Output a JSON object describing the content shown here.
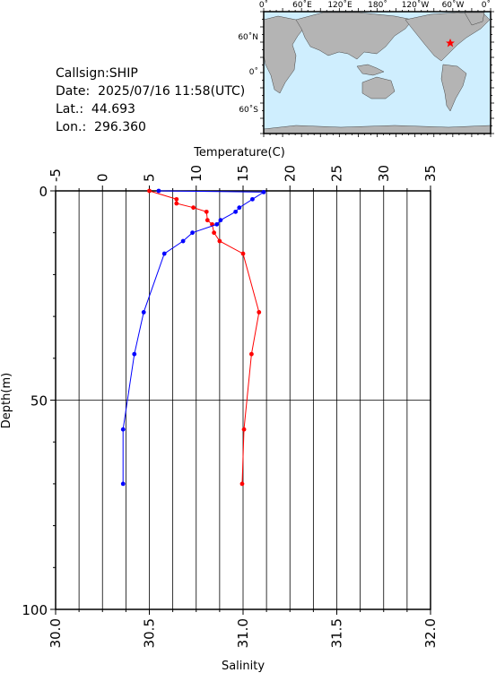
{
  "info": {
    "callsign": "Callsign:SHIP",
    "date": "Date:  2025/07/16 11:58(UTC)",
    "lat": "Lat.:  44.693",
    "lon": "Lon.:  296.360"
  },
  "map": {
    "top_labels": [
      "0˚",
      "60˚E",
      "120˚E",
      "180˚",
      "120˚W",
      "60˚W",
      "0˚"
    ],
    "left_labels": [
      "60˚N",
      "0˚",
      "60˚S"
    ],
    "station_marker": "red-star-icon",
    "ocean_color": "#cfeefe",
    "land_color": "#b4b4b4"
  },
  "chart_data": {
    "type": "line",
    "x_top_label": "Temperature(C)",
    "x_bottom_label": "Salinity",
    "ylabel": "Depth(m)",
    "temperature_ticks": [
      "-5",
      "0",
      "5",
      "10",
      "15",
      "20",
      "25",
      "30",
      "35"
    ],
    "salinity_ticks": [
      "30.0",
      "30.5",
      "31.0",
      "31.5",
      "32.0"
    ],
    "depth_ticks": [
      "0",
      "50",
      "100"
    ],
    "temperature_range": [
      -5,
      35
    ],
    "salinity_range": [
      30.0,
      32.0
    ],
    "depth_range": [
      0,
      100
    ],
    "grid": true,
    "series": [
      {
        "name": "Temperature(C)",
        "axis": "top",
        "color": "#ff0000",
        "points": [
          {
            "depth": 0,
            "value": 5.0
          },
          {
            "depth": 2,
            "value": 7.9
          },
          {
            "depth": 3,
            "value": 7.9
          },
          {
            "depth": 4,
            "value": 9.7
          },
          {
            "depth": 5,
            "value": 11.1
          },
          {
            "depth": 7,
            "value": 11.2
          },
          {
            "depth": 8,
            "value": 11.7
          },
          {
            "depth": 10,
            "value": 11.9
          },
          {
            "depth": 12,
            "value": 12.5
          },
          {
            "depth": 15,
            "value": 15.0
          },
          {
            "depth": 29,
            "value": 16.7
          },
          {
            "depth": 39,
            "value": 15.9
          },
          {
            "depth": 57,
            "value": 15.1
          },
          {
            "depth": 70,
            "value": 14.9
          }
        ]
      },
      {
        "name": "Salinity",
        "axis": "bottom",
        "color": "#0000ff",
        "points": [
          {
            "depth": 0,
            "value": 30.55
          },
          {
            "depth": 0.3,
            "value": 31.11
          },
          {
            "depth": 2,
            "value": 31.05
          },
          {
            "depth": 4,
            "value": 30.98
          },
          {
            "depth": 5,
            "value": 30.96
          },
          {
            "depth": 7,
            "value": 30.88
          },
          {
            "depth": 8,
            "value": 30.86
          },
          {
            "depth": 10,
            "value": 30.73
          },
          {
            "depth": 12,
            "value": 30.68
          },
          {
            "depth": 15,
            "value": 30.58
          },
          {
            "depth": 29,
            "value": 30.47
          },
          {
            "depth": 39,
            "value": 30.42
          },
          {
            "depth": 57,
            "value": 30.36
          },
          {
            "depth": 70,
            "value": 30.36
          }
        ]
      }
    ]
  }
}
